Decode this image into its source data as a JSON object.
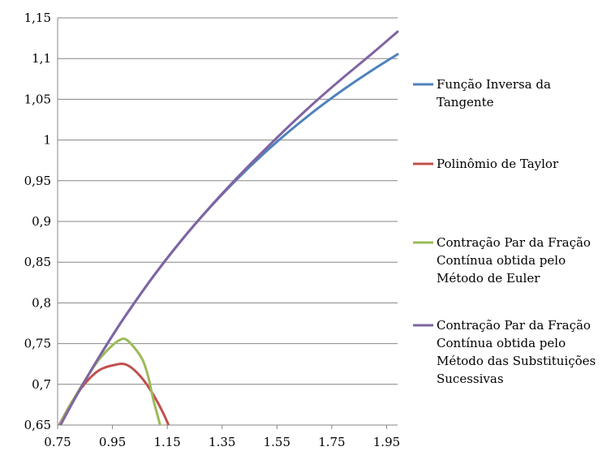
{
  "chart_data": {
    "type": "line",
    "title": "",
    "xlabel": "",
    "ylabel": "",
    "xlim": [
      0.75,
      1.99
    ],
    "ylim": [
      0.65,
      1.15
    ],
    "xticks": [
      "0.75",
      "0.95",
      "1.15",
      "1.35",
      "1.55",
      "1.75",
      "1.95"
    ],
    "xtick_values": [
      0.75,
      0.95,
      1.15,
      1.35,
      1.55,
      1.75,
      1.95
    ],
    "yticks": [
      "0,65",
      "0,7",
      "0,75",
      "0,8",
      "0,85",
      "0,9",
      "0,95",
      "1",
      "1,05",
      "1,1",
      "1,15"
    ],
    "ytick_values": [
      0.65,
      0.7,
      0.75,
      0.8,
      0.85,
      0.9,
      0.95,
      1.0,
      1.05,
      1.1,
      1.15
    ],
    "grid": "horizontal",
    "legend_position": "right",
    "series": [
      {
        "name": "Função Inversa da Tangente",
        "legend_lines": [
          "Função Inversa da",
          "Tangente"
        ],
        "color": "#4f81bd",
        "x": [
          0.75,
          0.8,
          0.85,
          0.9,
          0.95,
          1.0,
          1.1,
          1.2,
          1.3,
          1.4,
          1.5,
          1.6,
          1.7,
          1.8,
          1.9,
          1.99
        ],
        "y": [
          0.6435,
          0.6747,
          0.7045,
          0.7328,
          0.7598,
          0.7854,
          0.833,
          0.8761,
          0.9151,
          0.9505,
          0.9828,
          1.0122,
          1.0391,
          1.0637,
          1.0863,
          1.1053
        ]
      },
      {
        "name": "Polinômio de Taylor",
        "legend_lines": [
          "Polinômio de Taylor"
        ],
        "color": "#c0504d",
        "x": [
          0.75,
          0.8,
          0.85,
          0.9,
          0.95,
          1.0,
          1.05,
          1.1,
          1.15,
          1.18
        ],
        "y": [
          0.6464,
          0.6771,
          0.7011,
          0.717,
          0.7232,
          0.7242,
          0.7106,
          0.6868,
          0.6537,
          0.625
        ]
      },
      {
        "name": "Contração Par da Fração Contínua obtida pelo Método de Euler",
        "legend_lines": [
          "Contração Par da Fração",
          "Contínua obtida pelo",
          "Método de Euler"
        ],
        "color": "#9bbb59",
        "x": [
          0.75,
          0.8,
          0.85,
          0.9,
          0.95,
          0.98,
          1.0,
          1.03,
          1.06,
          1.08,
          1.1,
          1.12,
          1.13
        ],
        "y": [
          0.6455,
          0.677,
          0.705,
          0.73,
          0.748,
          0.755,
          0.755,
          0.745,
          0.73,
          0.71,
          0.68,
          0.655,
          0.64
        ]
      },
      {
        "name": "Contração Par da Fração Contínua obtida pelo Método das Substituições Sucessivas",
        "legend_lines": [
          "Contração Par da Fração",
          "Contínua obtida pelo",
          "Método das Substituições",
          "Sucessivas"
        ],
        "color": "#8064a2",
        "x": [
          0.75,
          0.8,
          0.85,
          0.9,
          0.95,
          1.0,
          1.1,
          1.2,
          1.3,
          1.4,
          1.5,
          1.6,
          1.7,
          1.8,
          1.9,
          1.99
        ],
        "y": [
          0.6435,
          0.6747,
          0.7045,
          0.7328,
          0.7598,
          0.7854,
          0.833,
          0.8761,
          0.9155,
          0.952,
          0.9862,
          1.019,
          1.05,
          1.079,
          1.107,
          1.133
        ]
      }
    ]
  }
}
